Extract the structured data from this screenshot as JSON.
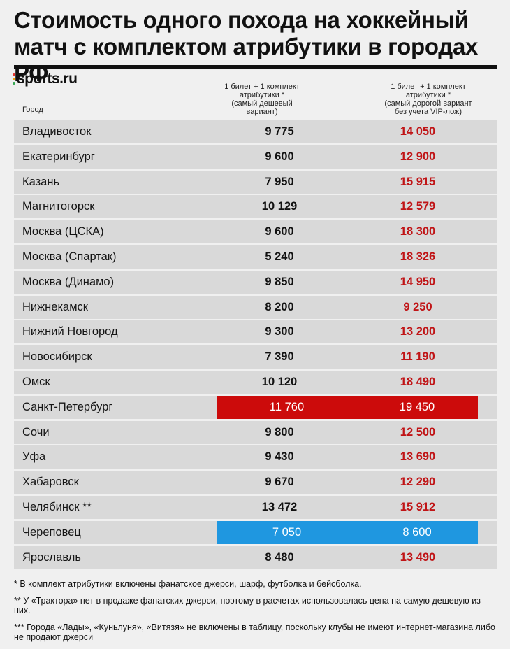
{
  "title": "Стоимость одного похода на хоккейный матч с комплектом атрибутики в городах РФ",
  "logo": "sports.ru",
  "colors": {
    "accent_red": "#c01416",
    "highlight_red": "#cc0b0b",
    "highlight_blue": "#1f97e0",
    "row_bg": "#d9d9d9"
  },
  "chart_data": {
    "type": "table",
    "title": "Стоимость одного похода на хоккейный матч с комплектом атрибутики в городах РФ",
    "columns": [
      "Город",
      "1 билет + 1 комплект атрибутики * (самый дешевый вариант)",
      "1 билет + 1 комплект атрибутики * (самый дорогой вариант без учета VIP-лож)"
    ],
    "rows": [
      {
        "city": "Владивосток",
        "min": "9 775",
        "max": "14 050",
        "highlight": ""
      },
      {
        "city": "Екатеринбург",
        "min": "9 600",
        "max": "12 900",
        "highlight": ""
      },
      {
        "city": "Казань",
        "min": "7 950",
        "max": "15 915",
        "highlight": ""
      },
      {
        "city": "Магнитогорск",
        "min": "10 129",
        "max": "12 579",
        "highlight": ""
      },
      {
        "city": "Москва (ЦСКА)",
        "min": "9 600",
        "max": "18 300",
        "highlight": ""
      },
      {
        "city": "Москва (Спартак)",
        "min": "5 240",
        "max": "18 326",
        "highlight": ""
      },
      {
        "city": "Москва (Динамо)",
        "min": "9 850",
        "max": "14 950",
        "highlight": ""
      },
      {
        "city": "Нижнекамск",
        "min": "8 200",
        "max": "9 250",
        "highlight": ""
      },
      {
        "city": "Нижний Новгород",
        "min": "9 300",
        "max": "13 200",
        "highlight": ""
      },
      {
        "city": "Новосибирск",
        "min": "7 390",
        "max": "11 190",
        "highlight": ""
      },
      {
        "city": "Омск",
        "min": "10 120",
        "max": "18 490",
        "highlight": ""
      },
      {
        "city": "Санкт-Петербург",
        "min": "11 760",
        "max": "19 450",
        "highlight": "red"
      },
      {
        "city": "Сочи",
        "min": "9 800",
        "max": "12 500",
        "highlight": ""
      },
      {
        "city": "Уфа",
        "min": "9 430",
        "max": "13 690",
        "highlight": ""
      },
      {
        "city": "Хабаровск",
        "min": "9 670",
        "max": "12 290",
        "highlight": ""
      },
      {
        "city": "Челябинск **",
        "min": "13 472",
        "max": "15 912",
        "highlight": ""
      },
      {
        "city": "Череповец",
        "min": "7 050",
        "max": "8 600",
        "highlight": "blue"
      },
      {
        "city": "Ярославль",
        "min": "8 480",
        "max": "13 490",
        "highlight": ""
      }
    ]
  },
  "header": {
    "city": "Город",
    "min_lines": [
      "1 билет + 1 комплект",
      "атрибутики *",
      "(самый дешевый",
      "вариант)"
    ],
    "max_lines": [
      "1 билет + 1 комплект",
      "атрибутики *",
      "(самый дорогой вариант",
      "без учета VIP-лож)"
    ]
  },
  "notes": {
    "n1": "* В комплект атрибутики включены фанатское джерси, шарф, футболка и бейсболка.",
    "n2": "** У «Трактора» нет в продаже фанатских джерси, поэтому в расчетах использовалась цена на самую дешевую из них.",
    "n3": "*** Города «Лады», «Куньлуня», «Витязя» не включены в таблицу, поскольку клубы не имеют интернет-магазина либо не продают джерси"
  }
}
